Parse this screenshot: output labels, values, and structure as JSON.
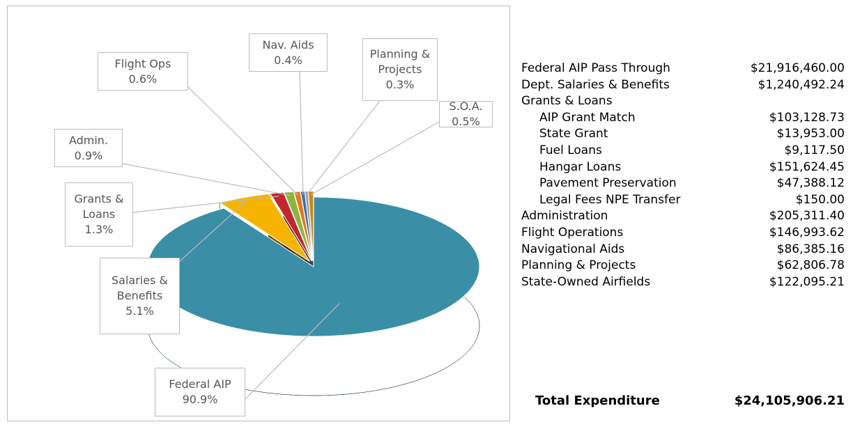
{
  "chart_data": {
    "type": "pie3d",
    "categories": [
      "Federal AIP",
      "Salaries & Benefits",
      "Grants & Loans",
      "Admin.",
      "Flight Ops",
      "Nav. Aids",
      "Planning & Projects",
      "S.O.A."
    ],
    "values": [
      90.9,
      5.1,
      1.3,
      0.9,
      0.6,
      0.4,
      0.3,
      0.5
    ],
    "value_labels": [
      "90.9%",
      "5.1%",
      "1.3%",
      "0.9%",
      "0.6%",
      "0.4%",
      "0.3%",
      "0.5%"
    ],
    "colors": [
      "#3a8fa7",
      "#f6b400",
      "#c4262d",
      "#8db43c",
      "#e17a22",
      "#3f6db0",
      "#9a9a9a",
      "#c88a18"
    ]
  },
  "table": {
    "rows": [
      {
        "label": "Federal AIP Pass Through",
        "amount": "$21,916,460.00"
      },
      {
        "label": "Dept. Salaries & Benefits",
        "amount": "$1,240,492.24"
      },
      {
        "label": "Grants & Loans",
        "items": [
          {
            "label": "AIP Grant Match",
            "amount": "$103,128.73"
          },
          {
            "label": "State Grant",
            "amount": "$13,953.00"
          },
          {
            "label": "Fuel Loans",
            "amount": "$9,117.50"
          },
          {
            "label": "Hangar Loans",
            "amount": "$151,624.45"
          },
          {
            "label": "Pavement Preservation",
            "amount": "$47,388.12"
          },
          {
            "label": "Legal Fees NPE Transfer",
            "amount": "$150.00"
          }
        ]
      },
      {
        "label": "Administration",
        "amount": "$205,311.40"
      },
      {
        "label": "Flight Operations",
        "amount": "$146,993.62"
      },
      {
        "label": "Navigational Aids",
        "amount": "$86,385.16"
      },
      {
        "label": "Planning & Projects",
        "amount": "$62,806.78"
      },
      {
        "label": "State-Owned Airfields",
        "amount": "$122,095.21"
      }
    ],
    "total": {
      "label": "Total Expenditure",
      "amount": "$24,105,906.21"
    }
  }
}
